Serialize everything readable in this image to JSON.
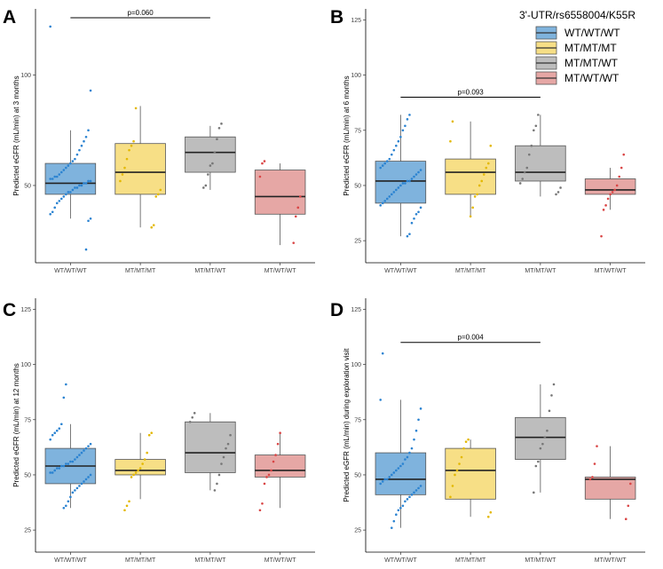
{
  "colors": {
    "WT/WT/WT": "#7fb3dd",
    "MT/MT/MT": "#f7df86",
    "MT/MT/WT": "#bdbdbd",
    "MT/WT/WT": "#e6a7a5",
    "points": {
      "WT/WT/WT": "#2b83d1",
      "MT/MT/MT": "#e3b800",
      "MT/MT/WT": "#777777",
      "MT/WT/WT": "#d94545"
    }
  },
  "legend": {
    "title": "3'-UTR/rs6558004/K55R",
    "items": [
      "WT/WT/WT",
      "MT/MT/MT",
      "MT/MT/WT",
      "MT/WT/WT"
    ]
  },
  "chart_data": [
    {
      "type": "box",
      "panel": "A",
      "ylabel": "Predicted eGFR (mL/min) at 3 months",
      "categories": [
        "WT/WT/WT",
        "MT/MT/MT",
        "MT/MT/WT",
        "MT/WT/WT"
      ],
      "ylim": [
        15,
        130
      ],
      "yticks": [
        50,
        100
      ],
      "boxes": [
        {
          "q1": 46,
          "median": 51,
          "q3": 60,
          "lower": 35,
          "upper": 75
        },
        {
          "q1": 46,
          "median": 56,
          "q3": 69,
          "lower": 31,
          "upper": 86
        },
        {
          "q1": 56,
          "median": 65,
          "q3": 72,
          "lower": 48,
          "upper": 77
        },
        {
          "q1": 37,
          "median": 45,
          "q3": 57,
          "lower": 23,
          "upper": 60
        }
      ],
      "points": [
        [
          122,
          93,
          75,
          72,
          70,
          68,
          66,
          64,
          62,
          61,
          60,
          59,
          58,
          57,
          56,
          55,
          54,
          54,
          53,
          53,
          52,
          52,
          51,
          51,
          50,
          50,
          49,
          49,
          48,
          47,
          47,
          46,
          45,
          44,
          43,
          42,
          40,
          38,
          37,
          35,
          34,
          21
        ],
        [
          85,
          70,
          68,
          66,
          62,
          58,
          55,
          52,
          48,
          46,
          45,
          32,
          31
        ],
        [
          78,
          76,
          71,
          65,
          60,
          59,
          55,
          50,
          49
        ],
        [
          61,
          60,
          54,
          45,
          40,
          36,
          24
        ]
      ],
      "annotation": {
        "text": "p=0.060",
        "from": 0,
        "to": 2,
        "y": 126
      }
    },
    {
      "type": "box",
      "panel": "B",
      "ylabel": "Predicted eGFR (mL/min) at 6 months",
      "categories": [
        "WT/WT/WT",
        "MT/MT/MT",
        "MT/MT/WT",
        "MT/WT/WT"
      ],
      "ylim": [
        15,
        130
      ],
      "yticks": [
        25,
        50,
        75,
        100,
        125
      ],
      "boxes": [
        {
          "q1": 42,
          "median": 52,
          "q3": 61,
          "lower": 27,
          "upper": 82
        },
        {
          "q1": 46,
          "median": 56,
          "q3": 62,
          "lower": 36,
          "upper": 79
        },
        {
          "q1": 52,
          "median": 56,
          "q3": 68,
          "lower": 45,
          "upper": 82
        },
        {
          "q1": 46,
          "median": 48,
          "q3": 53,
          "lower": 39,
          "upper": 58
        }
      ],
      "points": [
        [
          82,
          80,
          77,
          75,
          72,
          70,
          68,
          66,
          64,
          62,
          61,
          60,
          59,
          58,
          57,
          56,
          55,
          54,
          53,
          52,
          52,
          51,
          51,
          50,
          49,
          48,
          47,
          46,
          45,
          44,
          43,
          42,
          41,
          40,
          38,
          37,
          35,
          33,
          28,
          27
        ],
        [
          79,
          70,
          68,
          60,
          58,
          55,
          52,
          50,
          46,
          45,
          40,
          36
        ],
        [
          82,
          77,
          75,
          68,
          64,
          58,
          56,
          53,
          51,
          49,
          47,
          46
        ],
        [
          64,
          58,
          54,
          50,
          48,
          47,
          46,
          44,
          41,
          39,
          27
        ]
      ],
      "annotation": {
        "text": "p=0.093",
        "from": 0,
        "to": 2,
        "y": 90
      }
    },
    {
      "type": "box",
      "panel": "C",
      "ylabel": "Predicted eGFR (mL/min) at 12 months",
      "categories": [
        "WT/WT/WT",
        "MT/MT/MT",
        "MT/MT/WT",
        "MT/WT/WT"
      ],
      "ylim": [
        15,
        130
      ],
      "yticks": [
        25,
        50,
        75,
        100,
        125
      ],
      "boxes": [
        {
          "q1": 46,
          "median": 54,
          "q3": 62,
          "lower": 35,
          "upper": 73
        },
        {
          "q1": 50,
          "median": 52,
          "q3": 57,
          "lower": 39,
          "upper": 69
        },
        {
          "q1": 51,
          "median": 60,
          "q3": 74,
          "lower": 43,
          "upper": 78
        },
        {
          "q1": 49,
          "median": 52,
          "q3": 59,
          "lower": 35,
          "upper": 69
        }
      ],
      "points": [
        [
          91,
          85,
          73,
          71,
          70,
          69,
          68,
          66,
          64,
          63,
          62,
          61,
          60,
          59,
          58,
          57,
          56,
          56,
          55,
          55,
          54,
          54,
          53,
          53,
          52,
          51,
          51,
          50,
          49,
          48,
          47,
          46,
          45,
          44,
          43,
          42,
          40,
          38,
          36,
          35
        ],
        [
          69,
          68,
          60,
          57,
          55,
          53,
          52,
          51,
          50,
          49,
          38,
          36,
          34
        ],
        [
          78,
          76,
          74,
          68,
          64,
          62,
          58,
          55,
          50,
          46,
          43
        ],
        [
          69,
          64,
          59,
          56,
          52,
          50,
          49,
          46,
          37,
          34
        ]
      ]
    },
    {
      "type": "box",
      "panel": "D",
      "ylabel": "Predicted eGFR (mL/min) during  exploration visit",
      "categories": [
        "WT/WT/WT",
        "MT/MT/MT",
        "MT/MT/WT",
        "MT/WT/WT"
      ],
      "ylim": [
        15,
        130
      ],
      "yticks": [
        25,
        50,
        75,
        100,
        125
      ],
      "boxes": [
        {
          "q1": 41,
          "median": 48,
          "q3": 60,
          "lower": 26,
          "upper": 84
        },
        {
          "q1": 39,
          "median": 52,
          "q3": 62,
          "lower": 31,
          "upper": 66
        },
        {
          "q1": 57,
          "median": 67,
          "q3": 76,
          "lower": 42,
          "upper": 91
        },
        {
          "q1": 39,
          "median": 48,
          "q3": 49,
          "lower": 30,
          "upper": 63
        }
      ],
      "points": [
        [
          105,
          84,
          80,
          75,
          70,
          66,
          62,
          60,
          58,
          57,
          55,
          54,
          53,
          52,
          51,
          50,
          49,
          48,
          48,
          47,
          46,
          45,
          44,
          43,
          42,
          41,
          40,
          39,
          38,
          36,
          35,
          34,
          32,
          29,
          26
        ],
        [
          66,
          65,
          62,
          58,
          55,
          52,
          50,
          45,
          40,
          33,
          31
        ],
        [
          91,
          86,
          79,
          70,
          67,
          64,
          62,
          56,
          54,
          42
        ],
        [
          63,
          55,
          49,
          48,
          46,
          36,
          30
        ]
      ],
      "annotation": {
        "text": "p=0.004",
        "from": 0,
        "to": 2,
        "y": 110
      }
    }
  ]
}
